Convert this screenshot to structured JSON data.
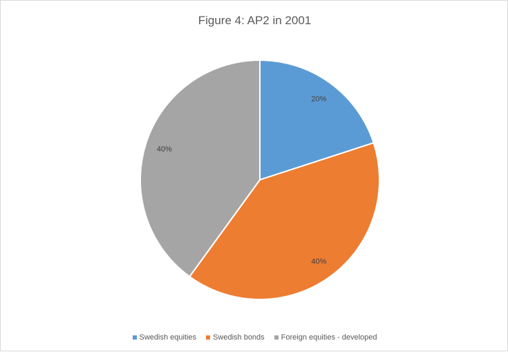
{
  "chart_data": {
    "type": "pie",
    "title": "Figure 4: AP2 in 2001",
    "categories": [
      "Swedish equities",
      "Swedish bonds",
      "Foreign equities - developed"
    ],
    "values": [
      20,
      40,
      40
    ],
    "labels": [
      "20%",
      "40%",
      "40%"
    ],
    "colors": [
      "#5b9bd5",
      "#ed7d31",
      "#a5a5a5"
    ],
    "legend": "bottom"
  }
}
